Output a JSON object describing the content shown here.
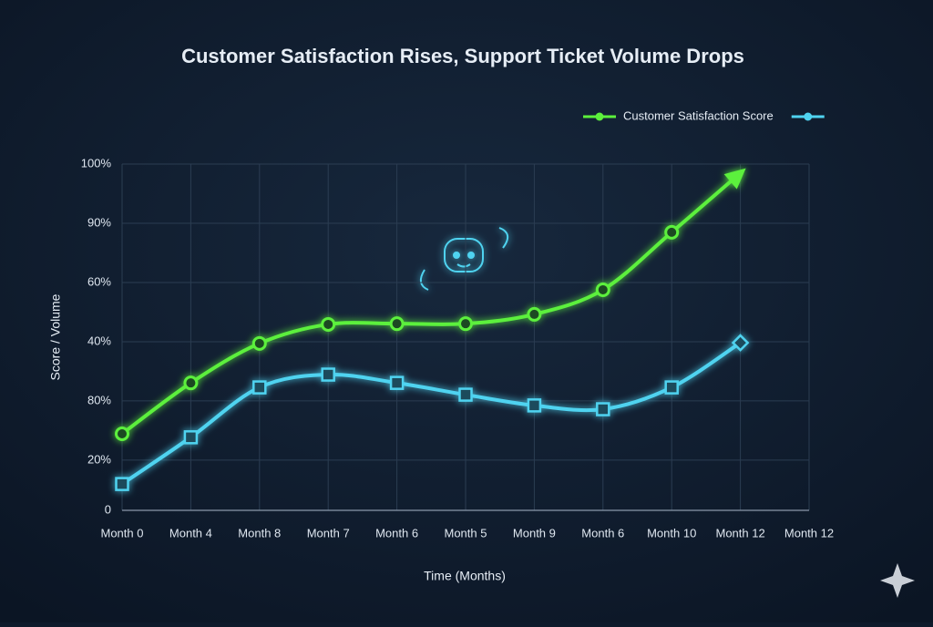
{
  "chart_data": {
    "type": "line",
    "title": "Customer Satisfaction Rises, Support Ticket Volume Drops",
    "x_label": "Time (Months)",
    "y_label": "Score / Volume",
    "categories": [
      "Month 0",
      "Month 4",
      "Month 8",
      "Month 7",
      "Month 6",
      "Month 5",
      "Month 9",
      "Month 6",
      "Month 10",
      "Month 12",
      "Month 12"
    ],
    "series": [
      {
        "name": "Customer Satisfaction Score",
        "color": "#5cf03c",
        "values": [
          22.1,
          36.8,
          48.2,
          53.7,
          53.9,
          53.9,
          56.6,
          63.7,
          80.3,
          97.4,
          null
        ]
      },
      {
        "color": "#4fd3f0",
        "values": [
          7.6,
          21.1,
          35.5,
          39.2,
          36.8,
          33.4,
          30.3,
          29.2,
          35.5,
          48.4,
          null
        ]
      }
    ],
    "ylim": [
      0,
      100
    ],
    "yticks": [
      0,
      {
        "value": 14.5,
        "label": "20%"
      },
      {
        "value": 31.6,
        "label": "80%"
      },
      {
        "value": 48.7,
        "label": "40%"
      },
      {
        "value": 65.8,
        "label": "60%"
      },
      {
        "value": 82.9,
        "label": "90%"
      },
      {
        "value": 100,
        "label": "100%"
      }
    ],
    "grid": true,
    "legend": "top-right"
  }
}
